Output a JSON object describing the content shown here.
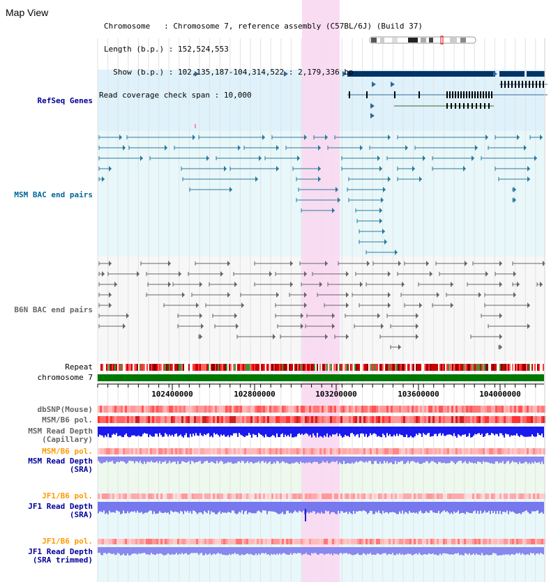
{
  "title": "Map View",
  "info": {
    "chromosome_key": "Chromosome",
    "chromosome_value": "Chromosome 7, reference assembly (C57BL/6J) (Build 37)",
    "length_key": "Length (b.p.)",
    "length_value": "152,524,553",
    "show_key": "Show (b.p.)",
    "show_value": "102,135,187-104,314,522 : 2,179,336 bp",
    "coverage_key": "Read coverage check span",
    "coverage_value": "10,000"
  },
  "tracks": {
    "refseq": "RefSeq Genes",
    "msm_bac": "MSM BAC end pairs",
    "b6n_bac": "B6N BAC end pairs",
    "repeat": "Repeat",
    "chromosome": "chromosome 7",
    "dbsnp": "dbSNP(Mouse)",
    "msm_b6_pol_1": "MSM/B6 pol.",
    "msm_read_depth_cap_1": "MSM Read Depth",
    "msm_read_depth_cap_2": "(Capillary)",
    "msm_b6_pol_2": "MSM/B6 pol.",
    "msm_read_depth_sra_1": "MSM Read Depth",
    "msm_read_depth_sra_2": "(SRA)",
    "jf1_b6_pol_1": "JF1/B6 pol.",
    "jf1_read_depth_sra_1": "JF1 Read Depth",
    "jf1_read_depth_sra_2": "(SRA)",
    "jf1_b6_pol_2": "JF1/B6 pol.",
    "jf1_read_depth_trim_1": "JF1 Read Depth",
    "jf1_read_depth_trim_2": "(SRA trimmed)"
  },
  "axis": {
    "ticks": [
      "102400000",
      "102800000",
      "103200000",
      "103600000",
      "104000000"
    ]
  },
  "colors": {
    "refseq_label": "#000099",
    "msm_label": "#006699",
    "b6n_label": "#666666",
    "pol_label": "#ff9900",
    "depth_label": "#000099",
    "highlight": "#f9d8f1",
    "refseq_bg": "#dff2fb",
    "msm_bg": "#e8f7fa",
    "chromosome_bar": "#007700"
  }
}
